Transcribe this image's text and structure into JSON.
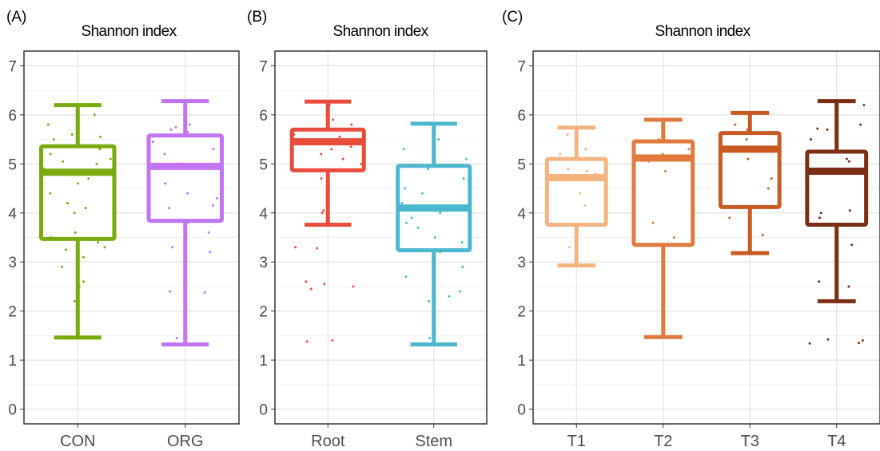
{
  "chart_data": [
    {
      "type": "box",
      "panel_label": "(A)",
      "title": "Shannon index",
      "ylim": [
        -0.3,
        7.3
      ],
      "yticks": [
        "0",
        "1",
        "2",
        "3",
        "4",
        "5",
        "6",
        "7"
      ],
      "categories": [
        "CON",
        "ORG"
      ],
      "colors": [
        "#7aab0e",
        "#c274f2"
      ],
      "boxes": [
        {
          "min": 1.46,
          "q1": 3.47,
          "median": 4.83,
          "q3": 5.36,
          "max": 6.2
        },
        {
          "min": 1.32,
          "q1": 3.84,
          "median": 4.95,
          "q3": 5.58,
          "max": 6.28
        }
      ],
      "points": [
        [
          6.0,
          5.8,
          5.6,
          5.55,
          5.5,
          5.3,
          5.2,
          5.1,
          5.05,
          5.0,
          4.9,
          4.8,
          4.7,
          4.6,
          4.4,
          4.2,
          4.1,
          4.0,
          3.6,
          3.5,
          3.4,
          3.3,
          3.25,
          3.2,
          3.1,
          2.9,
          2.6,
          2.5,
          2.2
        ],
        [
          5.8,
          5.75,
          5.7,
          5.65,
          5.6,
          5.45,
          5.3,
          5.2,
          5.0,
          4.95,
          4.6,
          4.4,
          4.3,
          4.15,
          4.1,
          3.8,
          3.6,
          3.3,
          3.2,
          2.4,
          2.38,
          1.45
        ]
      ]
    },
    {
      "type": "box",
      "panel_label": "(B)",
      "title": "Shannon index",
      "ylim": [
        -0.3,
        7.3
      ],
      "yticks": [
        "0",
        "1",
        "2",
        "3",
        "4",
        "5",
        "6",
        "7"
      ],
      "categories": [
        "Root",
        "Stem"
      ],
      "colors": [
        "#e84d3c",
        "#4bb7cf"
      ],
      "boxes": [
        {
          "min": 3.76,
          "q1": 4.87,
          "median": 5.45,
          "q3": 5.7,
          "max": 6.27
        },
        {
          "min": 1.32,
          "q1": 3.24,
          "median": 4.1,
          "q3": 4.96,
          "max": 5.82
        }
      ],
      "points": [
        [
          6.2,
          5.9,
          5.8,
          5.6,
          5.55,
          5.4,
          5.35,
          5.3,
          5.2,
          5.1,
          5.0,
          4.7,
          4.05,
          4.0,
          3.3,
          3.28,
          2.6,
          2.55,
          2.5,
          2.45,
          1.4,
          1.38
        ],
        [
          5.8,
          5.5,
          5.3,
          5.25,
          5.1,
          4.9,
          4.7,
          4.5,
          4.4,
          4.2,
          4.0,
          3.9,
          3.8,
          3.7,
          3.5,
          3.4,
          3.2,
          2.9,
          2.7,
          2.4,
          2.3,
          2.2,
          1.45
        ]
      ]
    },
    {
      "type": "box",
      "panel_label": "(C)",
      "title": "Shannon index",
      "ylim": [
        -0.3,
        7.3
      ],
      "yticks": [
        "0",
        "1",
        "2",
        "3",
        "4",
        "5",
        "6",
        "7"
      ],
      "categories": [
        "T1",
        "T2",
        "T3",
        "T4"
      ],
      "colors": [
        "#f5b47f",
        "#e07a3c",
        "#c85a22",
        "#7c2e12"
      ],
      "boxes": [
        {
          "min": 2.93,
          "q1": 3.76,
          "median": 4.72,
          "q3": 5.1,
          "max": 5.74
        },
        {
          "min": 1.47,
          "q1": 3.35,
          "median": 5.12,
          "q3": 5.46,
          "max": 5.9
        },
        {
          "min": 3.18,
          "q1": 4.12,
          "median": 5.3,
          "q3": 5.63,
          "max": 6.04
        },
        {
          "min": 2.2,
          "q1": 3.76,
          "median": 4.85,
          "q3": 5.25,
          "max": 6.28
        }
      ],
      "points": [
        [
          5.6,
          5.3,
          5.2,
          4.9,
          4.85,
          4.8,
          4.4,
          4.15,
          3.3
        ],
        [
          5.5,
          5.3,
          5.2,
          5.05,
          4.85,
          3.8,
          3.5,
          2.4
        ],
        [
          5.8,
          5.7,
          5.5,
          5.3,
          5.1,
          4.7,
          4.5,
          4.1,
          3.9,
          3.55
        ],
        [
          6.2,
          5.8,
          5.72,
          5.7,
          5.5,
          5.1,
          5.05,
          4.05,
          4.0,
          3.9,
          3.35,
          2.6,
          2.5,
          1.42,
          1.4,
          1.35,
          1.34
        ]
      ]
    }
  ]
}
